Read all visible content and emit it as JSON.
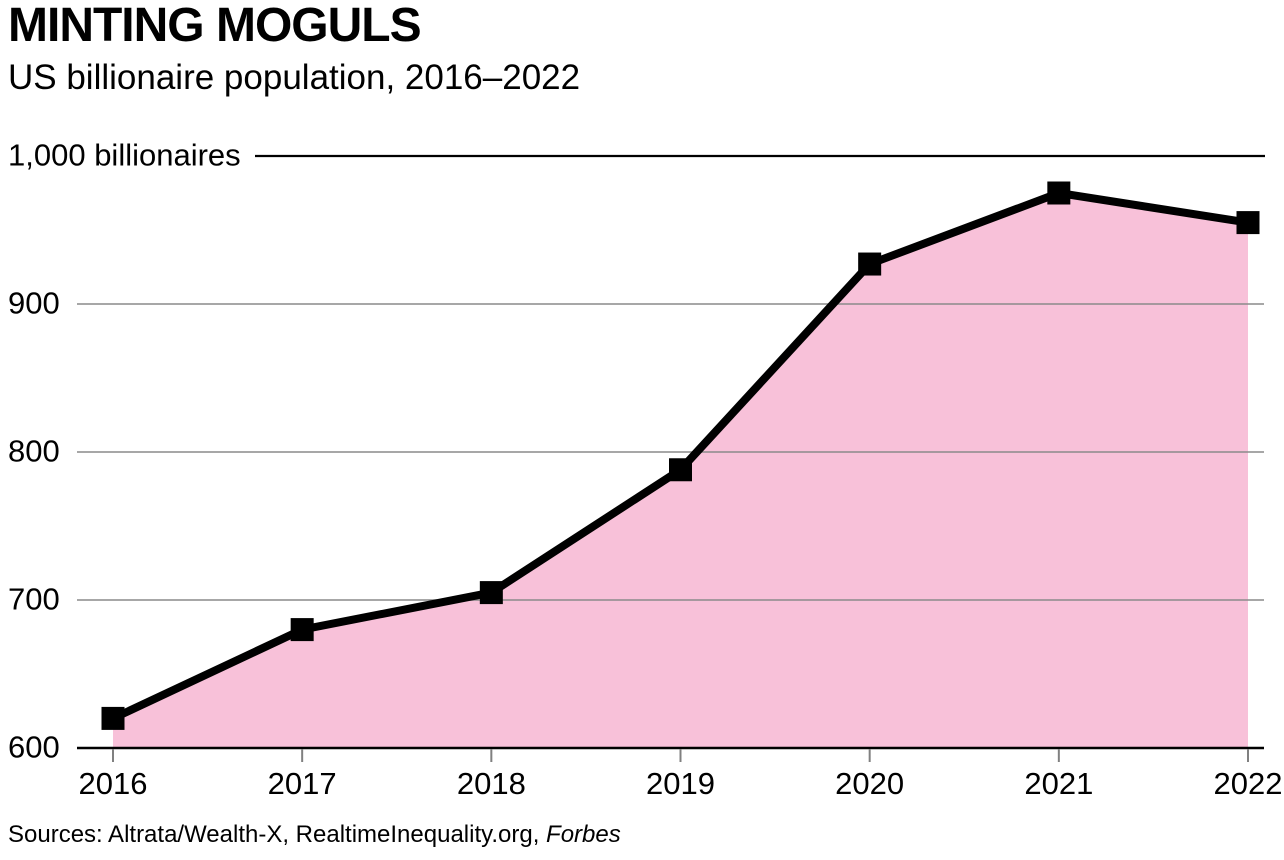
{
  "header": {
    "title": "MINTING MOGULS",
    "subtitle": "US billionaire population, 2016–2022"
  },
  "source": {
    "prefix": "Sources: Altrata/Wealth-X, RealtimeInequality.org, ",
    "italic": "Forbes"
  },
  "chart_data": {
    "type": "area",
    "title": "MINTING MOGULS",
    "subtitle": "US billionaire population, 2016–2022",
    "x": [
      2016,
      2017,
      2018,
      2019,
      2020,
      2021,
      2022
    ],
    "xtick_labels": [
      "2016",
      "2017",
      "2018",
      "2019",
      "2020",
      "2021",
      "2022"
    ],
    "values": [
      620,
      680,
      705,
      788,
      927,
      975,
      955
    ],
    "series_name": "US billionaires",
    "ylim": [
      600,
      1000
    ],
    "yticks": [
      600,
      700,
      800,
      900,
      1000
    ],
    "ytick_labels": [
      "600",
      "700",
      "800",
      "900",
      "1,000 billionaires"
    ],
    "grid": true,
    "legend": "none",
    "marker": "square",
    "colors": {
      "line": "#000000",
      "marker": "#000000",
      "fill": "#F8C1D9",
      "gridline": "#8A8A8A",
      "top_rule": "#000000",
      "baseline": "#000000",
      "tick": "#808080",
      "text": "#000000",
      "background": "#FFFFFF"
    }
  }
}
